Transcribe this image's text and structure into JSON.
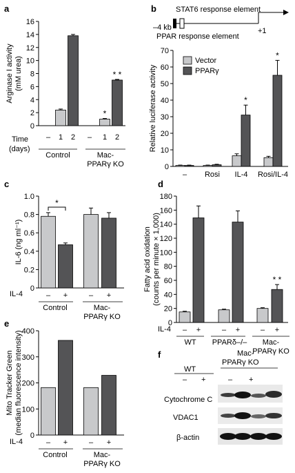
{
  "colors": {
    "light": "#c8c9cb",
    "dark": "#545456",
    "axis": "#000000"
  },
  "panel_letters": {
    "a": "a",
    "b": "b",
    "c": "c",
    "d": "d",
    "e": "e",
    "f": "f"
  },
  "promoter": {
    "stat6_label": "STAT6 response element",
    "ppar_label": "PPAR response element",
    "left_label": "–4 kb",
    "right_label": "+1"
  },
  "panel_a": {
    "time_label": "Time",
    "days_label": "(days)",
    "time_ticks": [
      "–",
      "1",
      "2",
      "–",
      "1",
      "2"
    ],
    "group_labels": [
      [
        "Control"
      ],
      [
        "Mac-",
        "PPARγ KO"
      ]
    ]
  },
  "panel_c": {
    "row_label": "IL-4",
    "signs": [
      "–",
      "+",
      "–",
      "+"
    ],
    "group_labels": [
      [
        "Control"
      ],
      [
        "Mac-",
        "PPARγ KO"
      ]
    ]
  },
  "panel_d": {
    "row_label": "IL-4",
    "signs": [
      "–",
      "+",
      "–",
      "+",
      "–",
      "+"
    ],
    "group_labels": [
      [
        "WT"
      ],
      [
        "PPARδ–/–"
      ],
      [
        "Mac-",
        "PPARγ KO"
      ]
    ]
  },
  "panel_e": {
    "row_label": "IL-4",
    "signs": [
      "–",
      "+",
      "–",
      "+"
    ],
    "group_labels": [
      [
        "Control"
      ],
      [
        "Mac-",
        "PPARγ KO"
      ]
    ]
  },
  "panel_f": {
    "groups": [
      "WT",
      "Mac-\nPPARγ KO"
    ],
    "group_wt": "WT",
    "group_ko_line1": "Mac-",
    "group_ko_line2": "PPARγ KO",
    "signs": [
      "–",
      "+",
      "–",
      "+"
    ],
    "rows": [
      "Cytochrome C",
      "VDAC1",
      "β-actin"
    ]
  },
  "chart_data": [
    {
      "panel": "a",
      "type": "bar",
      "ylabel": "Arginase I activity (mM urea)",
      "ylabel_lines": [
        "Arginase I activity",
        "(mM urea)"
      ],
      "ylim": [
        0,
        16
      ],
      "yticks": [
        0,
        2,
        4,
        6,
        8,
        10,
        12,
        14,
        16
      ],
      "categories": [
        "Control –",
        "Control 1",
        "Control 2",
        "Mac-PPARγ KO –",
        "Mac-PPARγ KO 1",
        "Mac-PPARγ KO 2"
      ],
      "values": [
        0,
        2.4,
        13.8,
        0,
        1.0,
        7.0
      ],
      "errors": [
        0,
        0.15,
        0.2,
        0,
        0.1,
        0.1
      ],
      "shades": [
        "none",
        "light",
        "dark",
        "none",
        "light",
        "dark"
      ],
      "significance": [
        "",
        "",
        "",
        "",
        "*",
        "* *"
      ]
    },
    {
      "panel": "b",
      "type": "bar",
      "ylabel": "Relative luciferase activity",
      "ylim": [
        0,
        70
      ],
      "yticks": [
        0,
        10,
        20,
        30,
        40,
        50,
        60,
        70
      ],
      "categories": [
        "–",
        "Rosi",
        "IL-4",
        "Rosi/IL-4"
      ],
      "series": [
        {
          "name": "Vector",
          "color": "light",
          "values": [
            0.6,
            0.6,
            6.4,
            5.3
          ],
          "errors": [
            0.2,
            0.2,
            1.2,
            0.8
          ]
        },
        {
          "name": "PPARγ",
          "color": "dark",
          "values": [
            0.6,
            1.0,
            31,
            55
          ],
          "errors": [
            0.2,
            0.3,
            6,
            9
          ]
        }
      ],
      "significance": [
        "",
        "",
        "*",
        "*"
      ],
      "legend": "top-left"
    },
    {
      "panel": "c",
      "type": "bar",
      "ylabel": "IL-6 (ng ml⁻¹)",
      "ylim": [
        0,
        1.0
      ],
      "yticks": [
        "0",
        "0.2",
        "0.4",
        "0.6",
        "0.8",
        "1.0"
      ],
      "categories": [
        "Control –",
        "Control +",
        "Mac-PPARγ KO –",
        "Mac-PPARγ KO +"
      ],
      "values": [
        0.78,
        0.47,
        0.8,
        0.76
      ],
      "errors": [
        0.04,
        0.02,
        0.07,
        0.06
      ],
      "shades": [
        "light",
        "dark",
        "light",
        "dark"
      ],
      "significance_bracket": {
        "label": "*",
        "from": 0,
        "to": 1
      }
    },
    {
      "panel": "d",
      "type": "bar",
      "ylabel": "Fatty acid oxidation (counts per minute × 1,000)",
      "ylabel_lines": [
        "Fatty acid oxidation",
        "(counts per minute × 1,000)"
      ],
      "ylim": [
        0,
        180
      ],
      "yticks": [
        0,
        20,
        40,
        60,
        80,
        100,
        120,
        140,
        160,
        180
      ],
      "categories": [
        "WT –",
        "WT +",
        "PPARδ–/– –",
        "PPARδ–/– +",
        "Mac-PPARγ KO –",
        "Mac-PPARγ KO +"
      ],
      "values": [
        15,
        149,
        18,
        143,
        20,
        47
      ],
      "errors": [
        1,
        17,
        1,
        16,
        1,
        7
      ],
      "shades": [
        "light",
        "dark",
        "light",
        "dark",
        "light",
        "dark"
      ],
      "significance": [
        "",
        "",
        "",
        "",
        "",
        "* *"
      ]
    },
    {
      "panel": "e",
      "type": "bar",
      "ylabel": "Mito Tracker Green (median fluorescence intensity)",
      "ylabel_lines": [
        "Mito Tracker Green",
        "(median fluorescence intensity)"
      ],
      "ylim": [
        0,
        400
      ],
      "yticks": [
        0,
        100,
        200,
        300,
        400
      ],
      "categories": [
        "Control –",
        "Control +",
        "Mac-PPARγ KO –",
        "Mac-PPARγ KO +"
      ],
      "values": [
        182,
        363,
        182,
        229
      ],
      "shades": [
        "light",
        "dark",
        "light",
        "dark"
      ]
    }
  ]
}
